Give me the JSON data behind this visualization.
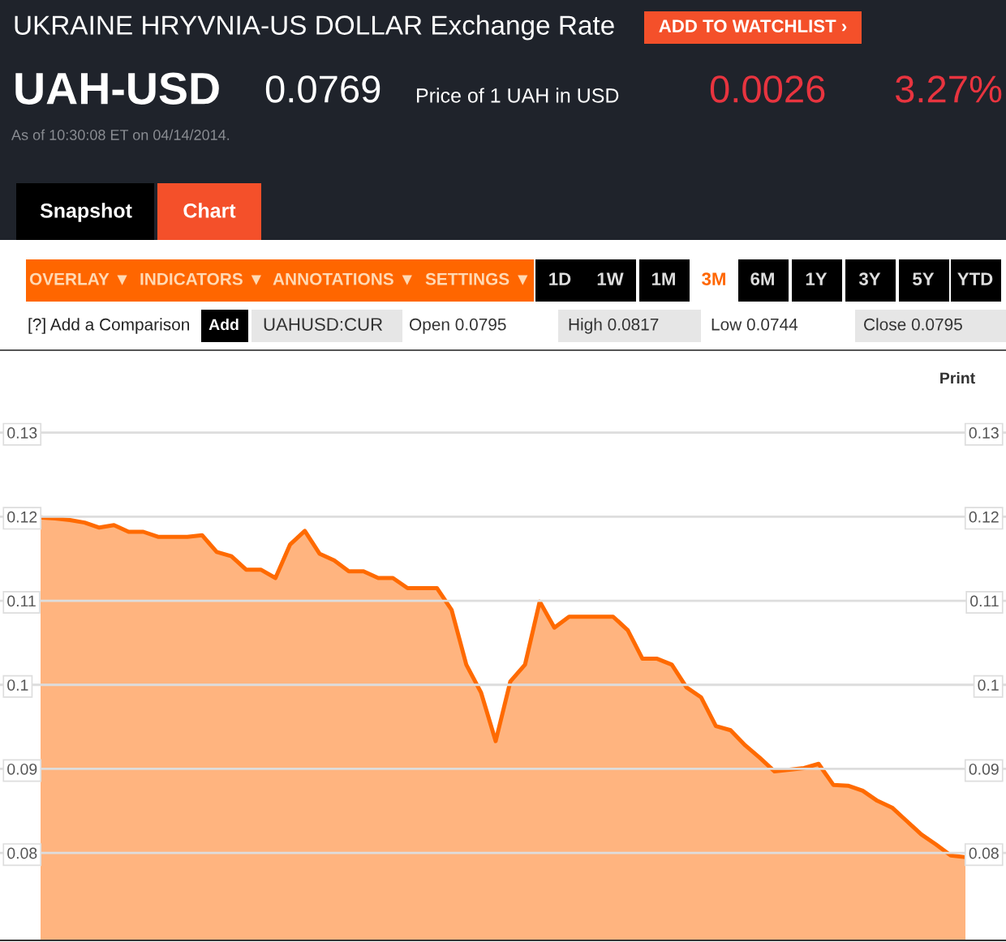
{
  "chart_data": {
    "type": "area",
    "title": "UKRAINE HRYVNIA-US DOLLAR Exchange Rate",
    "annotations": [
      "ADD TO WATCHLIST ›",
      "UAH-USD",
      "0.0769",
      "Price of 1 UAH in USD",
      "0.0026",
      "3.27%",
      "As of 10:30:08 ET on 04/14/2014.",
      "Snapshot",
      "Chart",
      "OVERLAY ▼",
      "INDICATORS ▼",
      "ANNOTATIONS ▼",
      "SETTINGS ▼",
      "1D",
      "1W",
      "1M",
      "3M",
      "6M",
      "1Y",
      "3Y",
      "5Y",
      "YTD",
      "[?] Add a Comparison",
      "Add",
      "UAHUSD:CUR",
      "Open 0.0795",
      "High 0.0817",
      "Low 0.0744",
      "Close 0.0795",
      "Print"
    ],
    "categories": [
      null,
      null,
      null,
      null,
      null,
      null,
      null,
      null,
      null,
      null,
      null,
      null,
      null,
      null,
      null,
      null,
      null,
      null,
      null,
      null,
      null,
      null,
      null,
      null,
      null,
      null,
      null,
      null,
      null,
      null,
      null,
      null,
      null,
      null,
      null,
      null,
      null,
      null,
      null,
      null,
      null,
      null,
      null,
      null,
      null,
      null,
      null,
      null,
      null,
      null,
      null,
      null,
      null,
      null,
      null,
      null,
      null,
      null,
      null,
      null,
      null,
      null,
      null,
      null
    ],
    "series": [
      {
        "color": "#ff6a00",
        "values": [
          0.1199,
          0.1198,
          0.1196,
          0.1193,
          0.1187,
          0.119,
          0.1182,
          0.1182,
          0.1176,
          0.1176,
          0.1176,
          0.1178,
          0.1158,
          0.1153,
          0.1137,
          0.1137,
          0.1127,
          0.1167,
          0.1183,
          0.1156,
          0.1148,
          0.1135,
          0.1135,
          0.1127,
          0.1127,
          0.1115,
          0.1115,
          0.1115,
          0.1089,
          0.1024,
          0.0991,
          0.0933,
          0.1004,
          0.1024,
          0.1099,
          0.1068,
          0.1081,
          0.1081,
          0.1081,
          0.1081,
          0.1065,
          0.1031,
          0.1031,
          0.1024,
          0.0997,
          0.0985,
          0.0951,
          0.0946,
          0.0928,
          0.0913,
          0.0897,
          0.0899,
          0.0901,
          0.0906,
          0.0881,
          0.088,
          0.0874,
          0.0862,
          0.0854,
          0.0838,
          0.0822,
          0.081,
          0.0797,
          0.0795
        ]
      }
    ],
    "ylim": [
      0.0696,
      0.1398
    ],
    "yticks": [
      {
        "value": 0.08,
        "label": "0.08"
      },
      {
        "value": 0.09,
        "label": "0.09"
      },
      {
        "value": 0.1,
        "label": "0.1"
      },
      {
        "value": 0.11,
        "label": "0.11"
      },
      {
        "value": 0.12,
        "label": "0.12"
      },
      {
        "value": 0.13,
        "label": "0.13"
      }
    ],
    "grid": "y"
  }
}
